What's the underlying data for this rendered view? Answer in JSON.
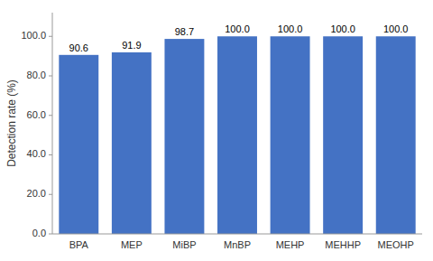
{
  "chart_data": {
    "type": "bar",
    "ylabel": "Detection rate (%)",
    "categories": [
      "BPA",
      "MEP",
      "MiBP",
      "MnBP",
      "MEHP",
      "MEHHP",
      "MEOHP"
    ],
    "values": [
      90.6,
      91.9,
      98.7,
      100.0,
      100.0,
      100.0,
      100.0
    ],
    "value_labels": [
      "90.6",
      "91.9",
      "98.7",
      "100.0",
      "100.0",
      "100.0",
      "100.0"
    ],
    "data_labels": true,
    "color": "#4472C4",
    "ylim": [
      0,
      112
    ],
    "yticks": [
      {
        "value": 0.0,
        "label": "0.0"
      },
      {
        "value": 20.0,
        "label": "20.0"
      },
      {
        "value": 40.0,
        "label": "40.0"
      },
      {
        "value": 60.0,
        "label": "60.0"
      },
      {
        "value": 80.0,
        "label": "80.0"
      },
      {
        "value": 100.0,
        "label": "100.0"
      }
    ],
    "grid": false
  }
}
